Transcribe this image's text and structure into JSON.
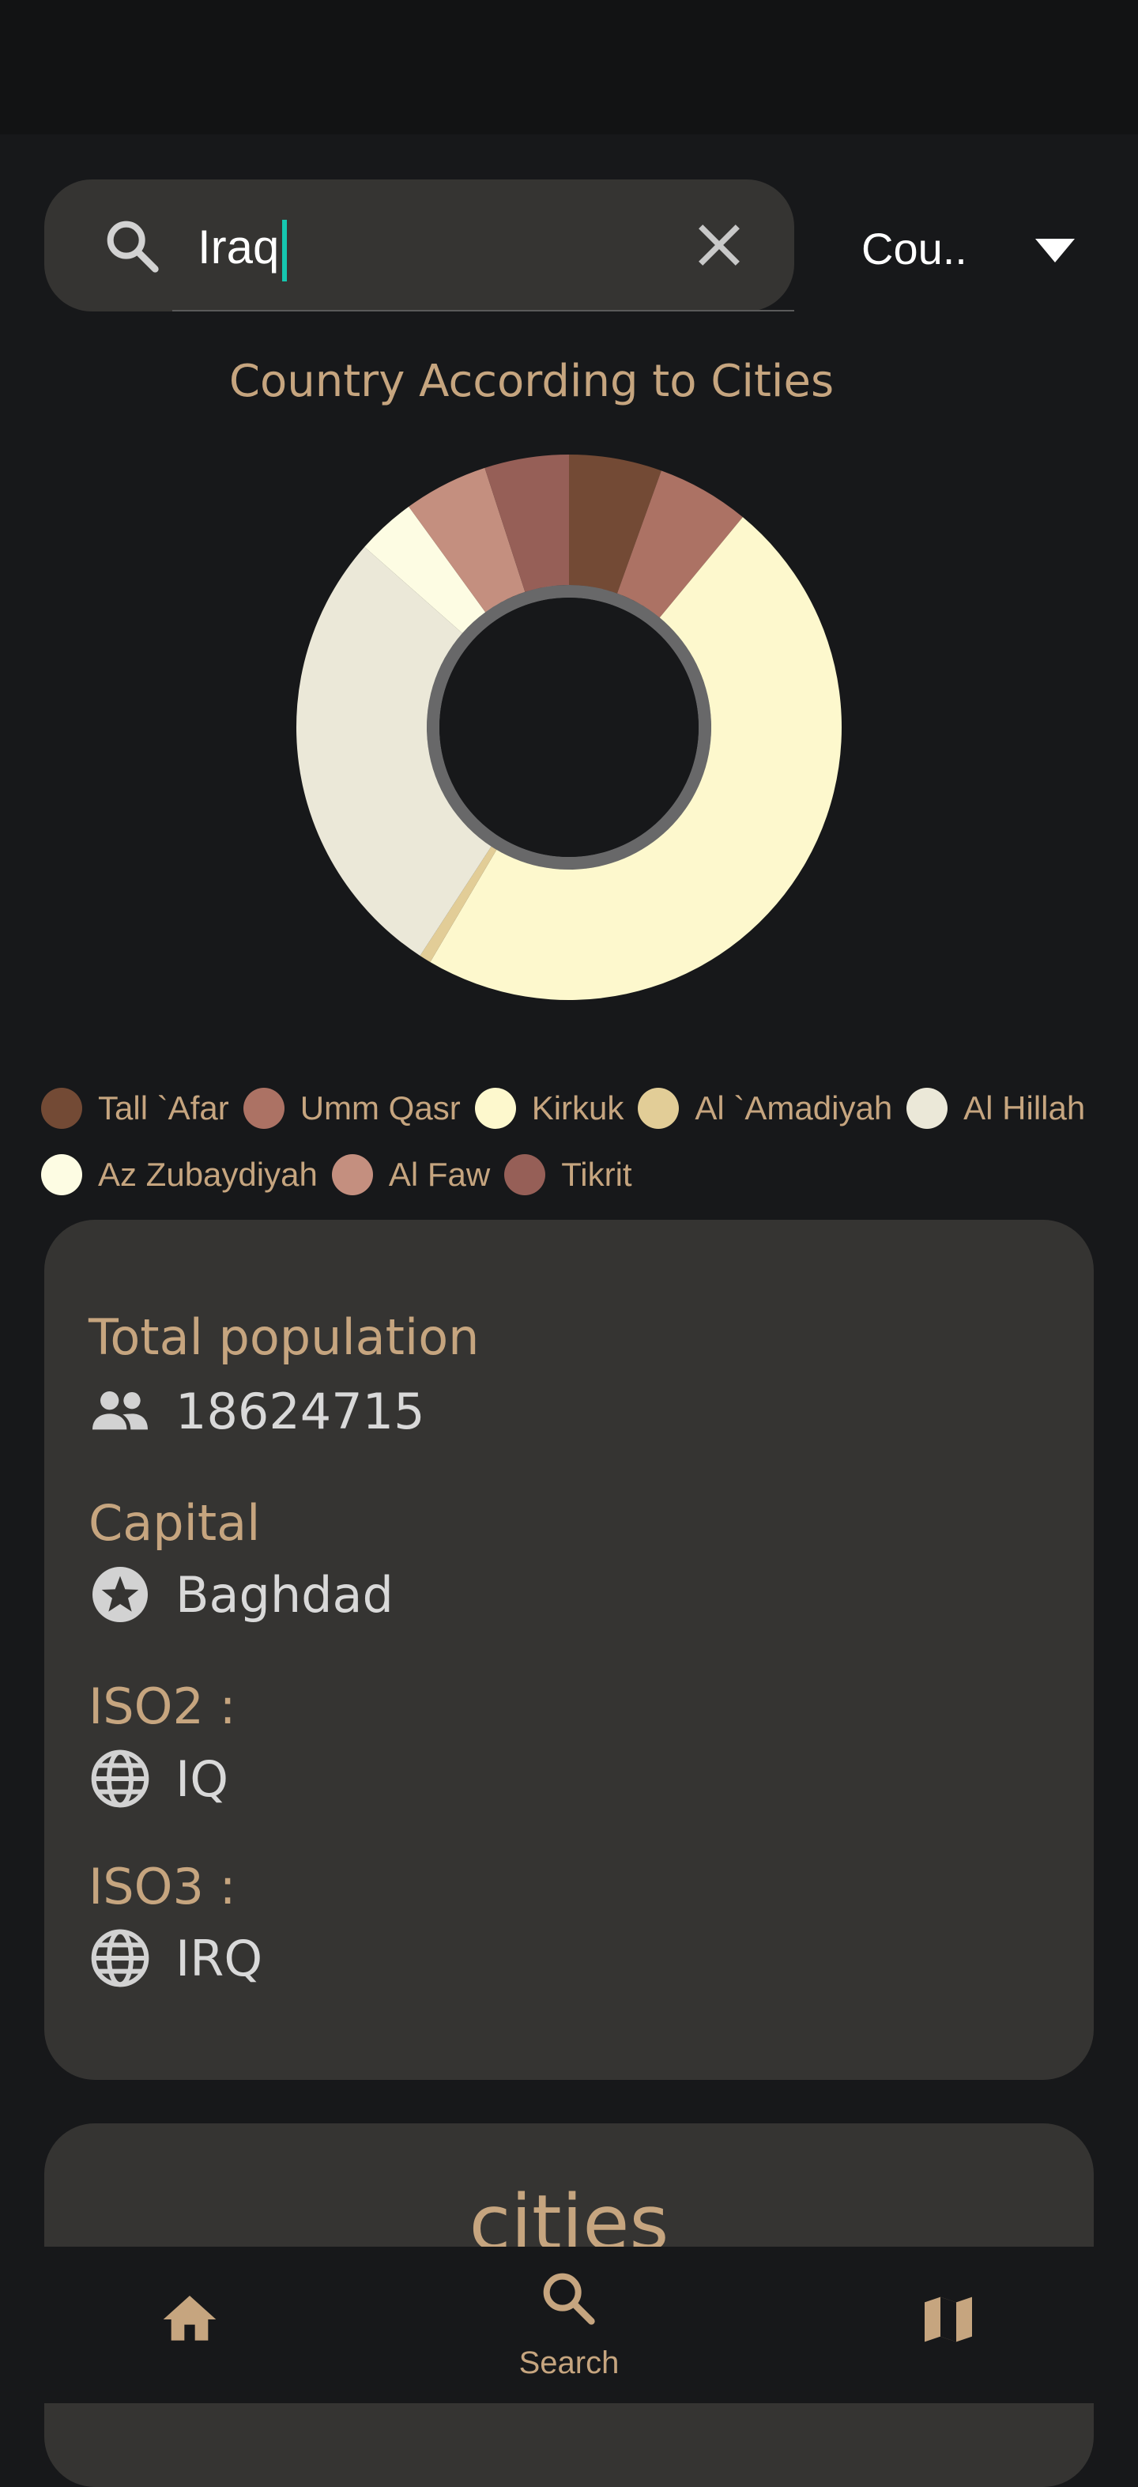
{
  "search": {
    "value": "Iraq",
    "clear_icon": "close-icon",
    "search_icon": "search-icon"
  },
  "filter": {
    "selected": "Cou..",
    "icon": "arrow-drop-down-icon"
  },
  "chart_data": {
    "type": "pie",
    "title": "Country According to Cities",
    "categories": [
      "Tall `Afar",
      "Umm Qasr",
      "Kirkuk",
      "Al `Amadiyah",
      "Al Hillah",
      "Az Zubaydiyah",
      "Al Faw",
      "Tikrit"
    ],
    "values": [
      5.5,
      5.5,
      47.5,
      0.7,
      27.3,
      3.5,
      5.0,
      5.0
    ],
    "colors": [
      "#734a35",
      "#ac7264",
      "#fdf8cd",
      "#e2cd97",
      "#ebe8d8",
      "#fdfce3",
      "#c48f7f",
      "#965f57"
    ],
    "legend": "bottom"
  },
  "info": {
    "population_label": "Total population",
    "population_value": "18624715",
    "capital_label": "Capital",
    "capital_value": "Baghdad",
    "iso2_label": "ISO2 :",
    "iso2_value": "IQ",
    "iso3_label": "ISO3 :",
    "iso3_value": "IRQ"
  },
  "cities": {
    "title": "cities"
  },
  "nav": {
    "items": [
      {
        "icon": "home-icon",
        "label": ""
      },
      {
        "icon": "search-icon",
        "label": "Search"
      },
      {
        "icon": "map-icon",
        "label": ""
      }
    ]
  },
  "colors": {
    "accent": "#c6a57f",
    "background": "#17181a",
    "card": "#353432",
    "caret": "#16c7b0"
  }
}
